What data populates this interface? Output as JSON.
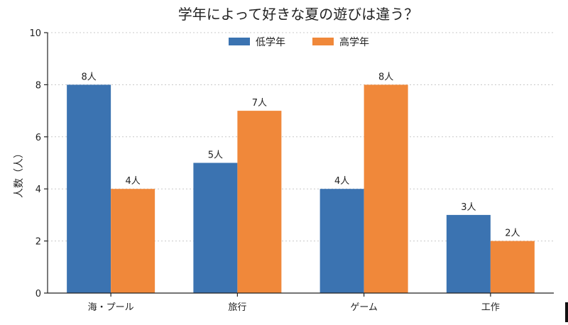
{
  "chart_data": {
    "type": "bar",
    "title": "学年によって好きな夏の遊びは違う？",
    "xlabel": "",
    "ylabel": "人数（人）",
    "categories": [
      "海・プール",
      "旅行",
      "ゲーム",
      "工作"
    ],
    "series": [
      {
        "name": "低学年",
        "values": [
          8,
          5,
          4,
          3
        ],
        "labels": [
          "8人",
          "5人",
          "4人",
          "3人"
        ],
        "color": "#3b73b1"
      },
      {
        "name": "高学年",
        "values": [
          4,
          7,
          8,
          2
        ],
        "labels": [
          "4人",
          "7人",
          "8人",
          "2人"
        ],
        "color": "#f0883a"
      }
    ],
    "ylim": [
      0,
      10
    ],
    "yticks": [
      0,
      2,
      4,
      6,
      8,
      10
    ],
    "grid": "horizontal-dotted",
    "legend": "top-center"
  }
}
